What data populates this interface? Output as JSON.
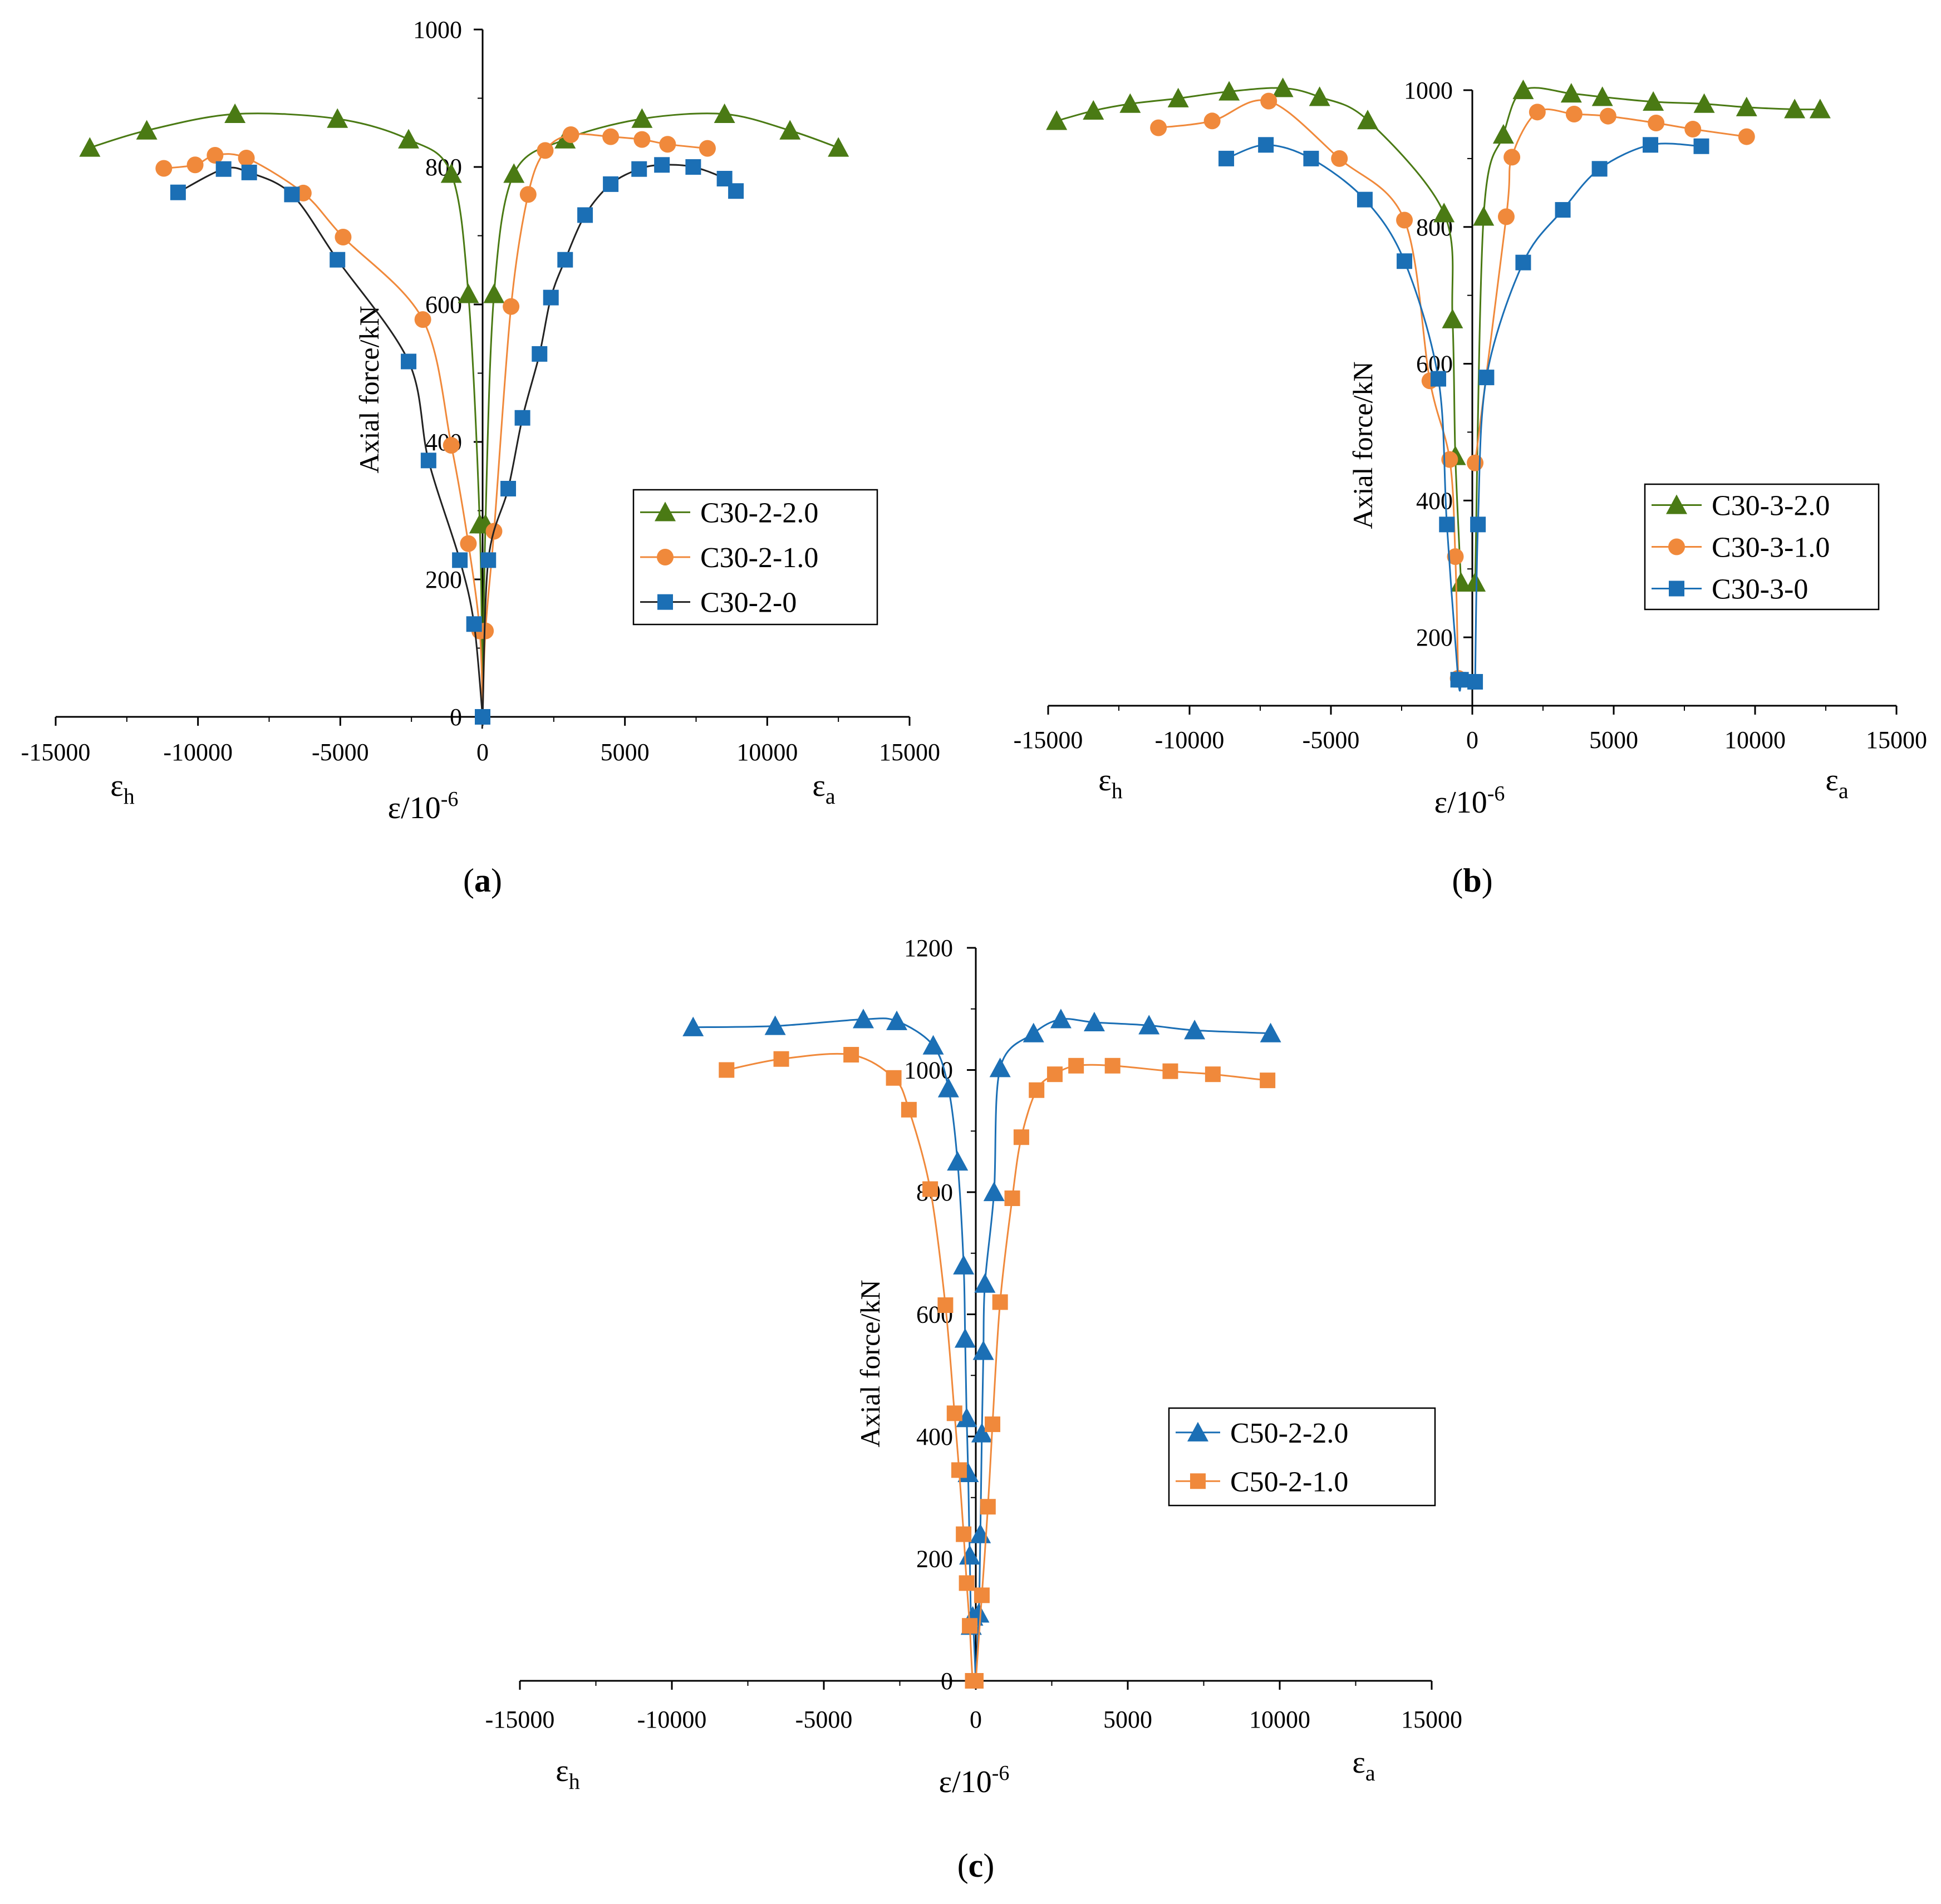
{
  "colors": {
    "green": "#4a7a14",
    "orange": "#f0893b",
    "blue": "#1b6fb5",
    "black": "#222222"
  },
  "chart_data": [
    {
      "type": "line",
      "caption_label": "a",
      "ylabel": "Axial force/kN",
      "xlabel_left": "ε",
      "xlabel_left_sub": "h",
      "xlabel_mid": "ε/10",
      "xlabel_mid_sup": "-6",
      "xlabel_right": "ε",
      "xlabel_right_sub": "a",
      "xlim": [
        -15000,
        15000
      ],
      "ylim": [
        0,
        1000
      ],
      "x_ticks": [
        "-15000",
        "-10000",
        "-5000",
        "0",
        "5000",
        "10000",
        "15000"
      ],
      "y_ticks": [
        "0",
        "200",
        "400",
        "600",
        "800",
        "1000"
      ],
      "legend_position": "right-middle",
      "series": [
        {
          "name": "C30-2-2.0",
          "marker": "triangle",
          "color": "#4a7a14",
          "line_color": "#4a7a14",
          "x": [
            -13800,
            -11800,
            -8700,
            -5100,
            -2600,
            -1100,
            -500,
            -100,
            100,
            400,
            1100,
            2900,
            5600,
            8500,
            10800,
            12500
          ],
          "y": [
            828,
            853,
            877,
            870,
            840,
            790,
            615,
            280,
            280,
            615,
            790,
            840,
            870,
            877,
            853,
            828
          ]
        },
        {
          "name": "C30-2-1.0",
          "marker": "circle",
          "color": "#f0893b",
          "line_color": "#f0893b",
          "x": [
            -11200,
            -10100,
            -9400,
            -8300,
            -6300,
            -4900,
            -2100,
            -1100,
            -500,
            -100,
            100,
            400,
            1000,
            1600,
            2200,
            3100,
            4500,
            5600,
            6500,
            7900
          ],
          "y": [
            798,
            803,
            817,
            813,
            762,
            698,
            578,
            395,
            252,
            125,
            125,
            270,
            597,
            760,
            824,
            847,
            844,
            840,
            833,
            827
          ]
        },
        {
          "name": "C30-2-0",
          "marker": "square",
          "color": "#1b6fb5",
          "line_color": "#222222",
          "x": [
            -10700,
            -9100,
            -8200,
            -6700,
            -5100,
            -2600,
            -1900,
            -800,
            -300,
            0,
            200,
            900,
            1400,
            2000,
            2400,
            2900,
            3600,
            4500,
            5500,
            6300,
            7400,
            8500,
            8900
          ],
          "y": [
            763,
            797,
            792,
            760,
            665,
            517,
            373,
            228,
            135,
            0,
            228,
            332,
            435,
            528,
            610,
            665,
            730,
            775,
            797,
            803,
            800,
            783,
            765
          ]
        }
      ]
    },
    {
      "type": "line",
      "caption_label": "b",
      "ylabel": "Axial force/kN",
      "xlabel_left": "ε",
      "xlabel_left_sub": "h",
      "xlabel_mid": "ε/10",
      "xlabel_mid_sup": "-6",
      "xlabel_right": "ε",
      "xlabel_right_sub": "a",
      "xlim": [
        -15000,
        15000
      ],
      "ylim": [
        100,
        1000
      ],
      "x_ticks": [
        "-15000",
        "-10000",
        "-5000",
        "0",
        "5000",
        "10000",
        "15000"
      ],
      "y_ticks": [
        "200",
        "400",
        "600",
        "800",
        "1000"
      ],
      "legend_position": "right-middle",
      "series": [
        {
          "name": "C30-3-2.0",
          "marker": "triangle",
          "color": "#4a7a14",
          "line_color": "#4a7a14",
          "x": [
            -14700,
            -13400,
            -12100,
            -10400,
            -8600,
            -6700,
            -5400,
            -3700,
            -1000,
            -700,
            -600,
            -400,
            100,
            400,
            1100,
            1800,
            3500,
            4600,
            6400,
            8200,
            9700,
            11400,
            12300
          ],
          "y": [
            955,
            970,
            980,
            988,
            998,
            1003,
            990,
            956,
            820,
            665,
            465,
            280,
            280,
            815,
            935,
            1000,
            995,
            990,
            983,
            980,
            975,
            972,
            972
          ]
        },
        {
          "name": "C30-3-1.0",
          "marker": "circle",
          "color": "#f0893b",
          "line_color": "#f0893b",
          "x": [
            -11100,
            -9200,
            -7200,
            -4700,
            -2400,
            -1500,
            -800,
            -600,
            -500,
            100,
            1200,
            1400,
            2300,
            3600,
            4800,
            6500,
            7800,
            9700
          ],
          "y": [
            945,
            955,
            984,
            900,
            810,
            575,
            460,
            318,
            140,
            455,
            815,
            902,
            968,
            965,
            962,
            952,
            943,
            932
          ]
        },
        {
          "name": "C30-3-0",
          "marker": "square",
          "color": "#1b6fb5",
          "line_color": "#1b6fb5",
          "x": [
            -8700,
            -7300,
            -5700,
            -3800,
            -2400,
            -1200,
            -900,
            -500,
            -400,
            100,
            200,
            500,
            1800,
            3200,
            4500,
            6300,
            8100
          ],
          "y": [
            900,
            920,
            900,
            840,
            750,
            578,
            365,
            138,
            138,
            135,
            365,
            580,
            748,
            825,
            885,
            920,
            918
          ]
        }
      ]
    },
    {
      "type": "line",
      "caption_label": "c",
      "ylabel": "Axial force/kN",
      "xlabel_left": "ε",
      "xlabel_left_sub": "h",
      "xlabel_mid": "ε/10",
      "xlabel_mid_sup": "-6",
      "xlabel_right": "ε",
      "xlabel_right_sub": "a",
      "xlim": [
        -15000,
        15000
      ],
      "ylim": [
        0,
        1200
      ],
      "x_ticks": [
        "-15000",
        "-10000",
        "-5000",
        "0",
        "5000",
        "10000",
        "15000"
      ],
      "y_ticks": [
        "0",
        "200",
        "400",
        "600",
        "800",
        "1000",
        "1200"
      ],
      "legend_position": "right-middle",
      "series": [
        {
          "name": "C50-2-2.0",
          "marker": "triangle",
          "color": "#1b6fb5",
          "line_color": "#1b6fb5",
          "x": [
            -9300,
            -6600,
            -3700,
            -2600,
            -1400,
            -900,
            -600,
            -400,
            -350,
            -300,
            -250,
            -200,
            -150,
            -100,
            100,
            150,
            200,
            250,
            300,
            600,
            800,
            1900,
            2800,
            3900,
            5700,
            7200,
            9700
          ],
          "y": [
            1070,
            1072,
            1083,
            1080,
            1040,
            970,
            850,
            680,
            560,
            430,
            340,
            205,
            90,
            105,
            110,
            240,
            405,
            540,
            650,
            800,
            1003,
            1060,
            1083,
            1078,
            1073,
            1065,
            1060
          ]
        },
        {
          "name": "C50-2-1.0",
          "marker": "square",
          "color": "#f0893b",
          "line_color": "#f0893b",
          "x": [
            -8200,
            -6400,
            -4100,
            -2700,
            -2200,
            -1500,
            -1000,
            -700,
            -550,
            -400,
            -300,
            -200,
            -100,
            0,
            200,
            400,
            550,
            800,
            1200,
            1500,
            2000,
            2600,
            3300,
            4500,
            6400,
            7800,
            9600
          ],
          "y": [
            1000,
            1018,
            1025,
            987,
            935,
            805,
            615,
            438,
            345,
            240,
            160,
            90,
            0,
            0,
            140,
            285,
            420,
            620,
            790,
            890,
            967,
            993,
            1007,
            1007,
            998,
            993,
            983
          ]
        }
      ]
    }
  ]
}
